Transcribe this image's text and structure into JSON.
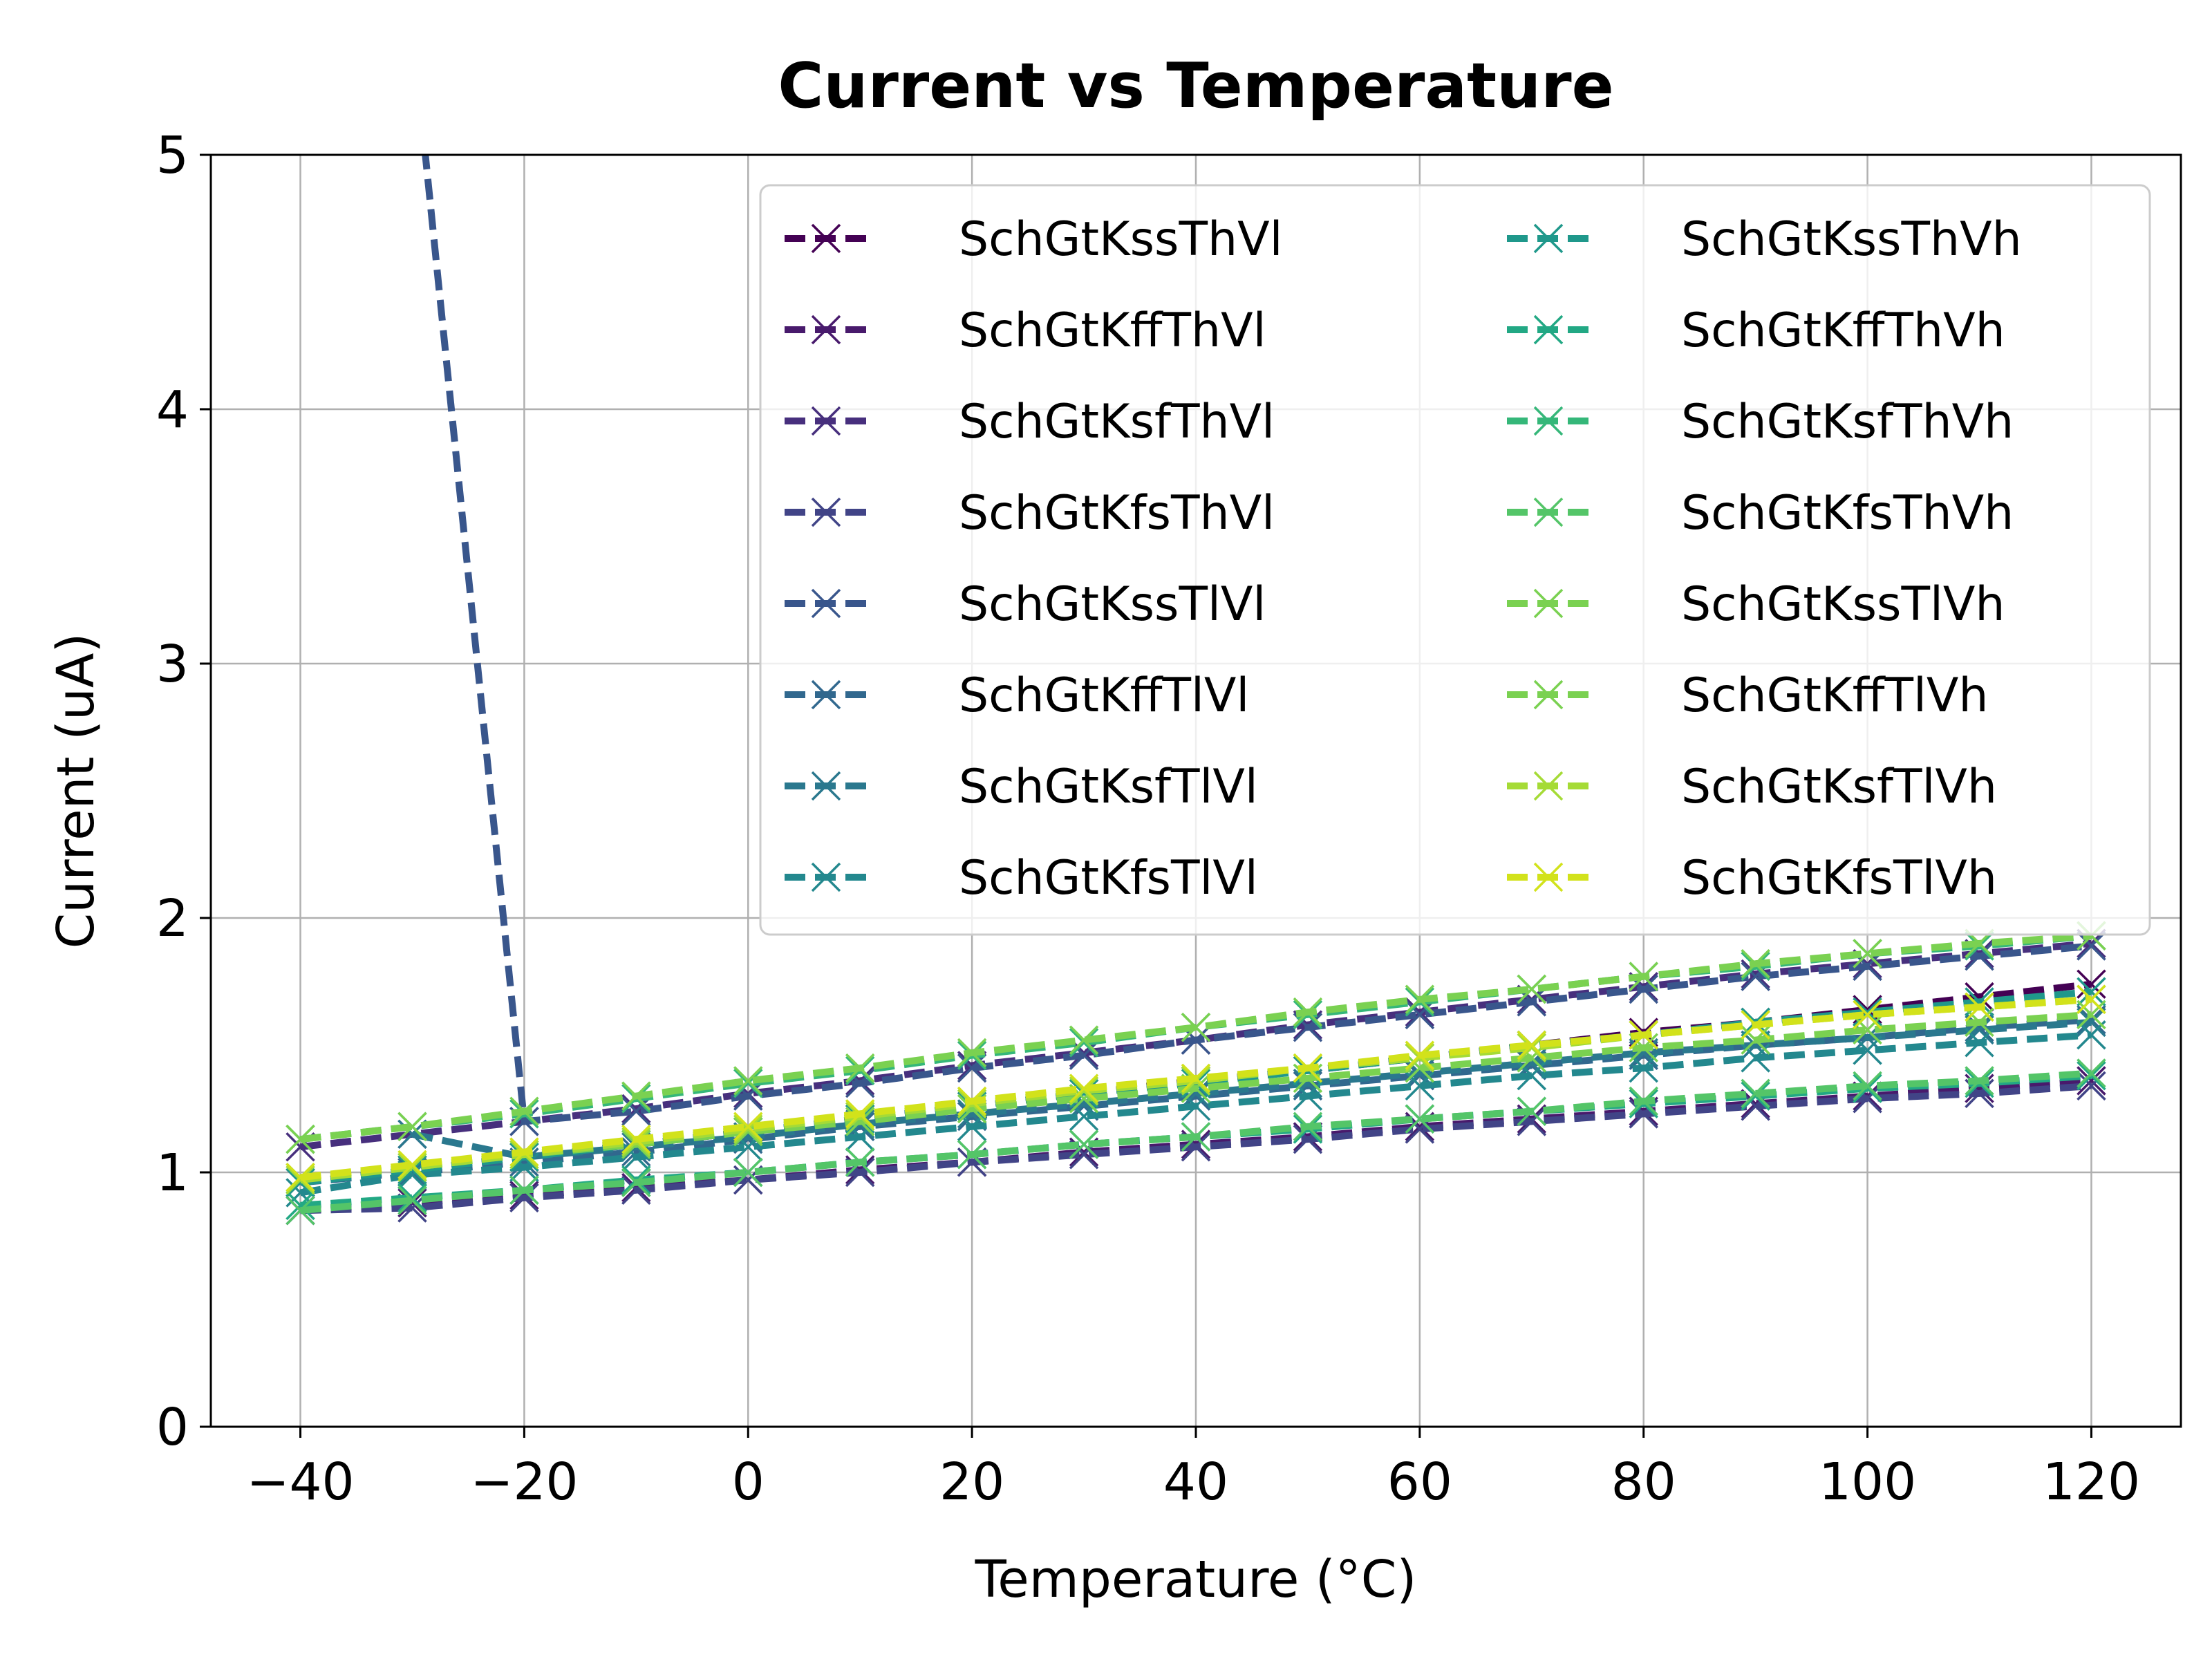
{
  "chart_data": {
    "type": "line",
    "title": "Current vs Temperature",
    "xlabel": "Temperature (°C)",
    "ylabel": "Current (uA)",
    "xlim": [
      -48,
      128
    ],
    "ylim": [
      0,
      5
    ],
    "xticks": [
      -40,
      -20,
      0,
      20,
      40,
      60,
      80,
      100,
      120
    ],
    "yticks": [
      0,
      1,
      2,
      3,
      4,
      5
    ],
    "xtick_labels": [
      "−40",
      "−20",
      "0",
      "20",
      "40",
      "60",
      "80",
      "100",
      "120"
    ],
    "ytick_labels": [
      "0",
      "1",
      "2",
      "3",
      "4",
      "5"
    ],
    "grid": true,
    "legend": "top-right, 2 columns",
    "line_style": "dashed",
    "marker": "x",
    "x": [
      -40,
      -30,
      -20,
      -10,
      0,
      10,
      20,
      30,
      40,
      50,
      60,
      70,
      80,
      90,
      100,
      110,
      120
    ],
    "series": [
      {
        "name": "SchGtKssThVl",
        "color": "#440154",
        "values": [
          0.96,
          1.01,
          1.06,
          1.11,
          1.16,
          1.21,
          1.26,
          1.31,
          1.36,
          1.4,
          1.45,
          1.5,
          1.55,
          1.59,
          1.64,
          1.69,
          1.74
        ]
      },
      {
        "name": "SchGtKffThVl",
        "color": "#481a6c",
        "values": [
          0.85,
          0.88,
          0.91,
          0.94,
          0.97,
          1.01,
          1.04,
          1.08,
          1.11,
          1.14,
          1.18,
          1.21,
          1.24,
          1.27,
          1.3,
          1.33,
          1.36
        ]
      },
      {
        "name": "SchGtKsfThVl",
        "color": "#472f7d",
        "values": [
          1.1,
          1.15,
          1.2,
          1.25,
          1.31,
          1.36,
          1.42,
          1.47,
          1.52,
          1.58,
          1.63,
          1.68,
          1.73,
          1.78,
          1.82,
          1.86,
          1.9
        ]
      },
      {
        "name": "SchGtKfsThVl",
        "color": "#414487",
        "values": [
          0.85,
          0.86,
          0.9,
          0.93,
          0.97,
          1.0,
          1.04,
          1.07,
          1.1,
          1.13,
          1.17,
          1.2,
          1.23,
          1.26,
          1.29,
          1.31,
          1.34
        ]
      },
      {
        "name": "SchGtKssTlVl",
        "color": "#39568c",
        "values": [
          null,
          5.5,
          1.2,
          1.24,
          1.3,
          1.35,
          1.41,
          1.46,
          1.52,
          1.57,
          1.62,
          1.67,
          1.72,
          1.77,
          1.81,
          1.85,
          1.89
        ]
      },
      {
        "name": "SchGtKffTlVl",
        "color": "#31688e",
        "values": [
          0.96,
          1.0,
          1.04,
          1.08,
          1.13,
          1.18,
          1.22,
          1.26,
          1.3,
          1.34,
          1.38,
          1.42,
          1.46,
          1.5,
          1.53,
          1.57,
          1.6
        ]
      },
      {
        "name": "SchGtKsfTlVl",
        "color": "#2a788e",
        "values": [
          null,
          1.15,
          1.06,
          1.1,
          1.14,
          1.19,
          1.23,
          1.27,
          1.31,
          1.35,
          1.39,
          1.43,
          1.47,
          1.5,
          1.53,
          1.56,
          1.59
        ]
      },
      {
        "name": "SchGtKfsTlVl",
        "color": "#23888e",
        "values": [
          0.92,
          0.99,
          1.02,
          1.06,
          1.1,
          1.14,
          1.18,
          1.22,
          1.26,
          1.3,
          1.34,
          1.38,
          1.41,
          1.45,
          1.48,
          1.51,
          1.54
        ]
      },
      {
        "name": "SchGtKssThVh",
        "color": "#1f988b",
        "values": [
          0.96,
          1.01,
          1.06,
          1.11,
          1.16,
          1.21,
          1.26,
          1.31,
          1.35,
          1.4,
          1.45,
          1.5,
          1.54,
          1.59,
          1.63,
          1.67,
          1.71
        ]
      },
      {
        "name": "SchGtKffThVh",
        "color": "#22a884",
        "values": [
          0.87,
          0.9,
          0.93,
          0.97,
          1.0,
          1.04,
          1.07,
          1.11,
          1.14,
          1.17,
          1.21,
          1.24,
          1.27,
          1.3,
          1.33,
          1.35,
          1.38
        ]
      },
      {
        "name": "SchGtKsfThVh",
        "color": "#35b779",
        "values": [
          1.13,
          1.18,
          1.23,
          1.29,
          1.35,
          1.4,
          1.46,
          1.51,
          1.57,
          1.62,
          1.67,
          1.72,
          1.77,
          1.81,
          1.86,
          1.89,
          1.93
        ]
      },
      {
        "name": "SchGtKfsThVh",
        "color": "#54c568",
        "values": [
          0.85,
          0.89,
          0.93,
          0.96,
          1.0,
          1.04,
          1.07,
          1.11,
          1.14,
          1.18,
          1.21,
          1.24,
          1.28,
          1.31,
          1.34,
          1.36,
          1.39
        ]
      },
      {
        "name": "SchGtKssTlVh",
        "color": "#7ad151",
        "values": [
          1.13,
          1.18,
          1.24,
          1.3,
          1.36,
          1.41,
          1.47,
          1.52,
          1.57,
          1.63,
          1.68,
          1.72,
          1.77,
          1.82,
          1.86,
          1.9,
          1.93
        ]
      },
      {
        "name": "SchGtKffTlVh",
        "color": "#7ad151",
        "values": [
          0.98,
          1.02,
          1.07,
          1.11,
          1.16,
          1.2,
          1.25,
          1.29,
          1.33,
          1.37,
          1.41,
          1.45,
          1.49,
          1.52,
          1.56,
          1.59,
          1.62
        ]
      },
      {
        "name": "SchGtKsfTlVh",
        "color": "#a5db36",
        "values": [
          0.97,
          1.02,
          1.07,
          1.12,
          1.17,
          1.22,
          1.27,
          1.32,
          1.36,
          1.41,
          1.45,
          1.49,
          1.54,
          1.58,
          1.62,
          1.65,
          1.68
        ]
      },
      {
        "name": "SchGtKfsTlVh",
        "color": "#d2e21b",
        "values": [
          0.98,
          1.03,
          1.08,
          1.13,
          1.18,
          1.23,
          1.28,
          1.33,
          1.37,
          1.41,
          1.46,
          1.5,
          1.54,
          1.58,
          1.62,
          1.65,
          1.68
        ]
      }
    ]
  }
}
